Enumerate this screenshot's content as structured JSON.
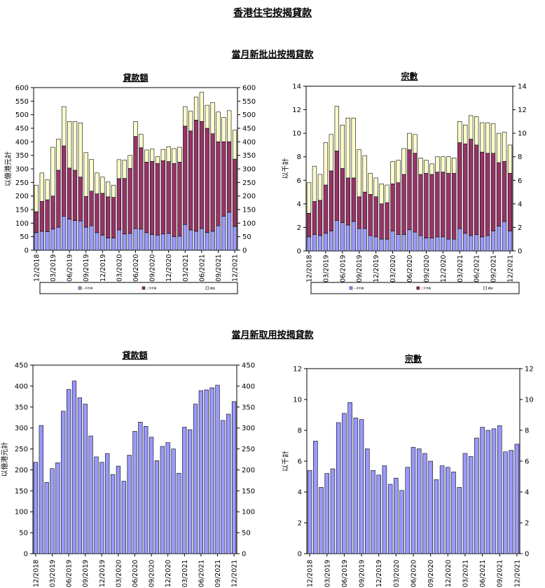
{
  "page": {
    "title": "香港住宅按揭貸款",
    "section1_title": "當月新批出按揭貸款",
    "section2_title": "當月新取用按揭貸款"
  },
  "colors": {
    "bottom": "#9999ff",
    "middle": "#993366",
    "top": "#ffffcc",
    "single": "#9999ff",
    "border": "#000000"
  },
  "chart_data": [
    {
      "id": "approved-amount",
      "type": "bar",
      "stacked": true,
      "title": "貸款額",
      "ylabel": "以億港元計",
      "ylim": [
        0,
        600
      ],
      "yticks": [
        0,
        50,
        100,
        150,
        200,
        250,
        300,
        350,
        400,
        450,
        500,
        550,
        600
      ],
      "x_tick_labels": [
        "12/2018",
        "03/2019",
        "06/2019",
        "09/2019",
        "12/2019",
        "03/2020",
        "06/2020",
        "09/2020",
        "12/2020",
        "03/2021",
        "06/2021",
        "09/2021",
        "12/2021"
      ],
      "legend": [
        "一手市場",
        "二手市場",
        "轉按"
      ],
      "series": [
        {
          "name": "一手市場",
          "values": [
            65,
            70,
            68,
            78,
            85,
            125,
            115,
            110,
            108,
            85,
            90,
            65,
            55,
            45,
            45,
            75,
            60,
            62,
            80,
            78,
            65,
            58,
            55,
            60,
            62,
            50,
            52,
            95,
            75,
            70,
            80,
            65,
            70,
            90,
            125,
            140,
            88
          ]
        },
        {
          "name": "二手市場",
          "values": [
            77,
            110,
            118,
            122,
            210,
            260,
            188,
            185,
            162,
            113,
            128,
            143,
            155,
            152,
            150,
            189,
            205,
            240,
            340,
            300,
            260,
            270,
            265,
            270,
            265,
            270,
            273,
            363,
            365,
            410,
            395,
            385,
            360,
            310,
            275,
            260,
            248
          ]
        },
        {
          "name": "轉按",
          "values": [
            98,
            105,
            74,
            180,
            115,
            145,
            172,
            180,
            200,
            162,
            117,
            77,
            60,
            55,
            45,
            70,
            68,
            48,
            55,
            50,
            45,
            45,
            25,
            42,
            55,
            55,
            55,
            72,
            73,
            85,
            108,
            85,
            115,
            110,
            90,
            115,
            107
          ]
        }
      ]
    },
    {
      "id": "approved-count",
      "type": "bar",
      "stacked": true,
      "title": "宗數",
      "ylabel": "以千計",
      "ylim": [
        0,
        14
      ],
      "yticks": [
        0,
        2,
        4,
        6,
        8,
        10,
        12,
        14
      ],
      "x_tick_labels": [
        "12/2018",
        "03/2019",
        "06/2019",
        "09/2019",
        "12/2019",
        "03/2020",
        "06/2020",
        "09/2020",
        "12/2020",
        "03/2021",
        "06/2021",
        "09/2021",
        "12/2021"
      ],
      "legend": [
        "一手市場",
        "二手市場",
        "轉按"
      ],
      "series": [
        {
          "name": "一手市場",
          "values": [
            1.2,
            1.4,
            1.3,
            1.5,
            1.7,
            2.6,
            2.4,
            2.2,
            2.5,
            1.9,
            1.9,
            1.3,
            1.2,
            1.0,
            1.0,
            1.7,
            1.4,
            1.4,
            1.8,
            1.6,
            1.3,
            1.1,
            1.1,
            1.2,
            1.2,
            1.0,
            1.0,
            1.9,
            1.5,
            1.3,
            1.4,
            1.2,
            1.3,
            1.7,
            2.1,
            2.5,
            1.7
          ]
        },
        {
          "name": "二手市場",
          "values": [
            2.0,
            2.8,
            3.0,
            4.1,
            5.1,
            5.9,
            4.6,
            4.0,
            3.7,
            2.7,
            3.1,
            3.5,
            3.4,
            3.0,
            3.1,
            4.0,
            4.4,
            5.1,
            6.8,
            6.7,
            5.2,
            5.5,
            5.4,
            5.5,
            5.5,
            5.6,
            5.6,
            7.3,
            7.6,
            8.2,
            7.6,
            7.2,
            7.0,
            6.6,
            5.4,
            5.1,
            4.9
          ]
        },
        {
          "name": "轉按",
          "values": [
            2.6,
            3.0,
            2.2,
            3.6,
            3.1,
            3.8,
            3.7,
            5.1,
            5.1,
            4.0,
            3.1,
            1.8,
            1.6,
            1.7,
            1.5,
            1.9,
            1.9,
            2.2,
            1.4,
            1.6,
            1.4,
            1.1,
            0.9,
            1.3,
            1.3,
            1.4,
            1.3,
            1.8,
            1.6,
            2.0,
            2.4,
            2.5,
            2.6,
            2.5,
            2.5,
            2.5,
            2.4
          ]
        }
      ]
    },
    {
      "id": "drawn-amount",
      "type": "bar",
      "title": "貸款額",
      "ylabel": "以億港元計",
      "ylim": [
        0,
        450
      ],
      "yticks": [
        0,
        50,
        100,
        150,
        200,
        250,
        300,
        350,
        400,
        450
      ],
      "x_tick_labels": [
        "12/2018",
        "03/2019",
        "06/2019",
        "09/2019",
        "12/2019",
        "03/2020",
        "06/2020",
        "09/2020",
        "12/2020",
        "03/2021",
        "06/2021",
        "09/2021",
        "12/2021"
      ],
      "values": [
        218,
        306,
        170,
        203,
        217,
        340,
        392,
        412,
        372,
        357,
        281,
        231,
        218,
        239,
        189,
        209,
        173,
        235,
        292,
        314,
        304,
        278,
        222,
        256,
        265,
        250,
        192,
        302,
        296,
        357,
        389,
        391,
        396,
        402,
        318,
        333,
        363
      ]
    },
    {
      "id": "drawn-count",
      "type": "bar",
      "title": "宗數",
      "ylabel": "以千計",
      "ylim": [
        0,
        12
      ],
      "yticks": [
        0,
        2,
        4,
        6,
        8,
        10,
        12
      ],
      "x_tick_labels": [
        "12/2018",
        "03/2019",
        "06/2019",
        "09/2019",
        "12/2019",
        "03/2020",
        "06/2020",
        "09/2020",
        "12/2020",
        "03/2021",
        "06/2021",
        "09/2021",
        "12/2021"
      ],
      "values": [
        5.4,
        7.3,
        4.3,
        5.2,
        5.5,
        8.5,
        9.1,
        9.8,
        8.8,
        8.7,
        6.8,
        5.4,
        5.1,
        5.7,
        4.5,
        4.9,
        4.1,
        5.6,
        6.9,
        6.8,
        6.5,
        6.0,
        4.8,
        5.7,
        5.6,
        5.3,
        4.3,
        6.5,
        6.3,
        7.5,
        8.2,
        8.0,
        8.1,
        8.3,
        6.6,
        6.7,
        7.1
      ]
    }
  ]
}
